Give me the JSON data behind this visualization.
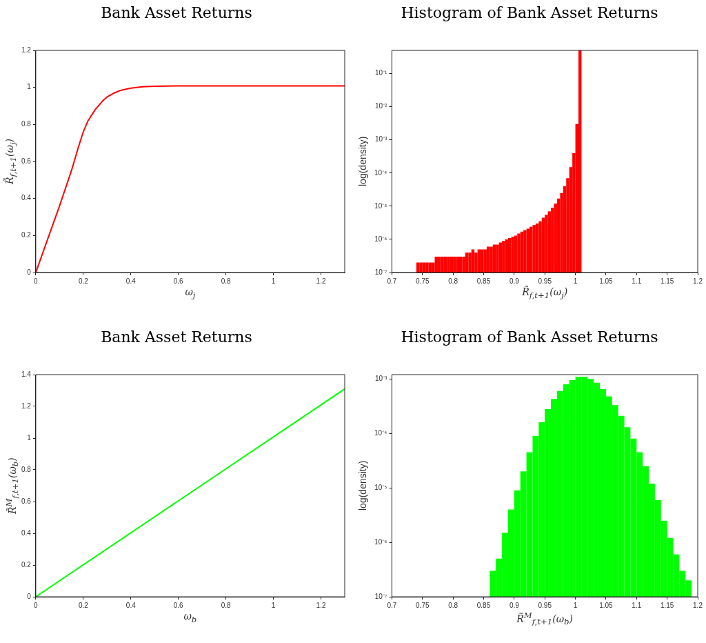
{
  "chart_data": [
    {
      "type": "line",
      "title": "Bank Asset Returns",
      "xlabel": "ω$_{j}$",
      "ylabel": "R̃$_{f,t+1}$(ω$_{j}$)",
      "color": "#ff0000",
      "marker": "none",
      "line_style": "solid",
      "x": [
        0,
        0.05,
        0.1,
        0.15,
        0.18,
        0.2,
        0.22,
        0.25,
        0.28,
        0.3,
        0.33,
        0.36,
        0.4,
        0.45,
        0.5,
        0.6,
        0.8,
        1.0,
        1.3
      ],
      "values": [
        0,
        0.18,
        0.36,
        0.55,
        0.68,
        0.76,
        0.82,
        0.88,
        0.925,
        0.948,
        0.97,
        0.985,
        0.996,
        1.003,
        1.006,
        1.008,
        1.008,
        1.008,
        1.008
      ],
      "xlim": [
        0,
        1.3
      ],
      "xticks": [
        0,
        0.2,
        0.4,
        0.6,
        0.8,
        1,
        1.2
      ],
      "ylim": [
        0,
        1.2
      ],
      "yticks": [
        0,
        0.2,
        0.4,
        0.6,
        0.8,
        1,
        1.2
      ],
      "grid": false,
      "legend": false
    },
    {
      "type": "histogram",
      "title": "Histogram of Bank Asset Returns",
      "xlabel": "R̃$_{f,t+1}$(ω$_{j}$)",
      "ylabel": "log(density)",
      "color": "#ff0000",
      "log": "y",
      "bins": [
        0.74,
        0.745,
        0.75,
        0.755,
        0.76,
        0.765,
        0.77,
        0.775,
        0.78,
        0.785,
        0.79,
        0.795,
        0.8,
        0.805,
        0.81,
        0.815,
        0.82,
        0.825,
        0.83,
        0.835,
        0.84,
        0.845,
        0.85,
        0.855,
        0.86,
        0.865,
        0.87,
        0.875,
        0.88,
        0.885,
        0.89,
        0.895,
        0.9,
        0.905,
        0.91,
        0.915,
        0.92,
        0.925,
        0.93,
        0.935,
        0.94,
        0.945,
        0.95,
        0.955,
        0.96,
        0.965,
        0.97,
        0.975,
        0.98,
        0.985,
        0.99,
        0.995,
        1.0,
        1.005,
        1.01
      ],
      "values": [
        2e-07,
        2e-07,
        2e-07,
        2e-07,
        2e-07,
        2e-07,
        3e-07,
        3e-07,
        3e-07,
        3e-07,
        3e-07,
        3e-07,
        3e-07,
        3e-07,
        3e-07,
        3e-07,
        4e-07,
        4e-07,
        5e-07,
        4e-07,
        5e-07,
        5e-07,
        5e-07,
        6e-07,
        6e-07,
        7e-07,
        7e-07,
        8e-07,
        9e-07,
        1e-06,
        1.1e-06,
        1.2e-06,
        1.3e-06,
        1.5e-06,
        1.7e-06,
        1.9e-06,
        2.1e-06,
        2.4e-06,
        2.7e-06,
        3e-06,
        3.5e-06,
        4.5e-06,
        5.5e-06,
        7e-06,
        9e-06,
        1.2e-05,
        1.7e-05,
        2.5e-05,
        4e-05,
        7e-05,
        0.00015,
        0.0004,
        0.003,
        0.5
      ],
      "xlim": [
        0.7,
        1.2
      ],
      "xticks": [
        0.7,
        0.75,
        0.8,
        0.85,
        0.9,
        0.95,
        1,
        1.05,
        1.1,
        1.15,
        1.2
      ],
      "ylim": [
        1e-07,
        0.5
      ],
      "yticks": [
        {
          "value": 1e-07,
          "label": "10⁻⁷"
        },
        {
          "value": 1e-06,
          "label": "10⁻⁶"
        },
        {
          "value": 1e-05,
          "label": "10⁻⁵"
        },
        {
          "value": 0.0001,
          "label": "10⁻⁴"
        },
        {
          "value": 0.001,
          "label": "10⁻³"
        },
        {
          "value": 0.01,
          "label": "10⁻²"
        },
        {
          "value": 0.1,
          "label": "10⁻¹"
        }
      ],
      "grid": false,
      "legend": false
    },
    {
      "type": "line",
      "title": "Bank Asset Returns",
      "xlabel": "ω$_{b}$",
      "ylabel": "R̃$^{M}$$_{f,t+1}$(ω$_{b}$)",
      "color": "#00ff00",
      "marker": "none",
      "line_style": "solid",
      "x": [
        0,
        1.3
      ],
      "values": [
        0,
        1.31
      ],
      "xlim": [
        0,
        1.3
      ],
      "xticks": [
        0,
        0.2,
        0.4,
        0.6,
        0.8,
        1,
        1.2
      ],
      "ylim": [
        0,
        1.4
      ],
      "yticks": [
        0,
        0.2,
        0.4,
        0.6,
        0.8,
        1,
        1.2,
        1.4
      ],
      "grid": false,
      "legend": false
    },
    {
      "type": "histogram",
      "title": "Histogram of Bank Asset Returns",
      "xlabel": "R̃$^{M}$$_{f,t+1}$(ω$_{b}$)",
      "ylabel": "log(density)",
      "color": "#00ff00",
      "log": "y",
      "bins": [
        0.86,
        0.87,
        0.88,
        0.89,
        0.9,
        0.91,
        0.92,
        0.93,
        0.94,
        0.95,
        0.96,
        0.97,
        0.98,
        0.99,
        1.0,
        1.01,
        1.02,
        1.03,
        1.04,
        1.05,
        1.06,
        1.07,
        1.08,
        1.09,
        1.1,
        1.11,
        1.12,
        1.13,
        1.14,
        1.15,
        1.16,
        1.17,
        1.18,
        1.19
      ],
      "values": [
        3e-07,
        5e-07,
        1.5e-06,
        4e-06,
        9e-06,
        2e-05,
        4.5e-05,
        9e-05,
        0.00016,
        0.00028,
        0.00043,
        0.0006,
        0.0008,
        0.00095,
        0.0011,
        0.0011,
        0.001,
        0.00085,
        0.00065,
        0.00048,
        0.00033,
        0.00021,
        0.00013,
        8e-05,
        4.5e-05,
        2.5e-05,
        1.2e-05,
        6e-06,
        2.5e-06,
        1.2e-06,
        6e-07,
        3e-07,
        2e-07
      ],
      "xlim": [
        0.7,
        1.2
      ],
      "xticks": [
        0.7,
        0.75,
        0.8,
        0.85,
        0.9,
        0.95,
        1,
        1.05,
        1.1,
        1.15,
        1.2
      ],
      "ylim": [
        1e-07,
        0.0012
      ],
      "yticks": [
        {
          "value": 1e-07,
          "label": "10⁻⁷"
        },
        {
          "value": 1e-06,
          "label": "10⁻⁶"
        },
        {
          "value": 1e-05,
          "label": "10⁻⁵"
        },
        {
          "value": 0.0001,
          "label": "10⁻⁴"
        },
        {
          "value": 0.001,
          "label": "10⁻³"
        }
      ],
      "grid": false,
      "legend": false
    }
  ]
}
